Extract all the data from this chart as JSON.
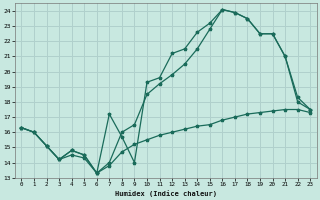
{
  "xlabel": "Humidex (Indice chaleur)",
  "bg_color": "#c8e8e0",
  "grid_color": "#b0d0cc",
  "line_color": "#1a6b5a",
  "xlim": [
    -0.5,
    23.5
  ],
  "ylim": [
    13,
    24.5
  ],
  "xticks": [
    0,
    1,
    2,
    3,
    4,
    5,
    6,
    7,
    8,
    9,
    10,
    11,
    12,
    13,
    14,
    15,
    16,
    17,
    18,
    19,
    20,
    21,
    22,
    23
  ],
  "yticks": [
    13,
    14,
    15,
    16,
    17,
    18,
    19,
    20,
    21,
    22,
    23,
    24
  ],
  "curve1_x": [
    0,
    1,
    2,
    3,
    4,
    5,
    6,
    7,
    8,
    9,
    10,
    11,
    12,
    13,
    14,
    15,
    16,
    17,
    18,
    19,
    20,
    21,
    22,
    23
  ],
  "curve1_y": [
    16.3,
    16.0,
    15.1,
    14.2,
    14.8,
    14.5,
    13.3,
    17.2,
    15.7,
    14.0,
    19.3,
    19.6,
    21.2,
    21.5,
    22.6,
    23.2,
    24.1,
    23.9,
    23.5,
    22.5,
    22.5,
    21.0,
    18.3,
    17.5
  ],
  "curve2_x": [
    0,
    1,
    2,
    3,
    4,
    5,
    6,
    7,
    8,
    9,
    10,
    11,
    12,
    13,
    14,
    15,
    16,
    17,
    18,
    19,
    20,
    21,
    22,
    23
  ],
  "curve2_y": [
    16.3,
    16.0,
    15.1,
    14.2,
    14.8,
    14.5,
    13.3,
    14.0,
    16.0,
    16.5,
    18.5,
    19.2,
    19.8,
    20.5,
    21.5,
    22.8,
    24.1,
    23.9,
    23.5,
    22.5,
    22.5,
    21.0,
    18.0,
    17.5
  ],
  "curve3_x": [
    0,
    1,
    2,
    3,
    4,
    5,
    6,
    7,
    8,
    9,
    10,
    11,
    12,
    13,
    14,
    15,
    16,
    17,
    18,
    19,
    20,
    21,
    22,
    23
  ],
  "curve3_y": [
    16.3,
    16.0,
    15.1,
    14.2,
    14.5,
    14.3,
    13.3,
    13.8,
    14.7,
    15.2,
    15.5,
    15.8,
    16.0,
    16.2,
    16.4,
    16.5,
    16.8,
    17.0,
    17.2,
    17.3,
    17.4,
    17.5,
    17.5,
    17.3
  ]
}
